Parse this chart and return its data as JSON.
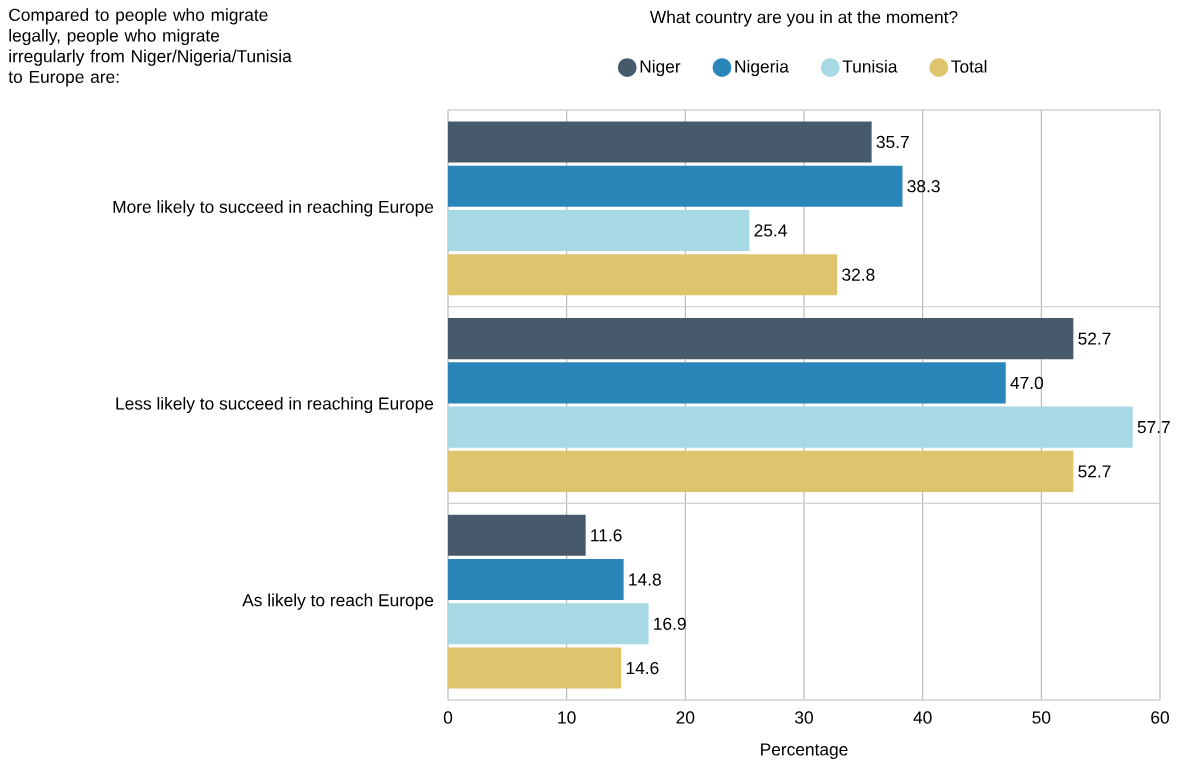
{
  "chart_data": {
    "type": "bar",
    "orientation": "horizontal",
    "ylabel": "Compared to people who migrate legally, people who migrate irregularly from Niger/Nigeria/Tunisia to Europe are:",
    "legend_title": "What country are you in at the moment?",
    "xlabel": "Percentage",
    "categories": [
      "More likely to succeed in reaching Europe",
      "Less likely to succeed in reaching Europe",
      "As likely to reach Europe"
    ],
    "series": [
      {
        "name": "Niger",
        "color": "#475a6b",
        "values": [
          35.7,
          52.7,
          11.6
        ],
        "value_labels": [
          "35.7",
          "52.7",
          "11.6"
        ]
      },
      {
        "name": "Nigeria",
        "color": "#2a86b8",
        "values": [
          38.3,
          47.0,
          14.8
        ],
        "value_labels": [
          "38.3",
          "47.0",
          "14.8"
        ]
      },
      {
        "name": "Tunisia",
        "color": "#a6d9e3",
        "values": [
          25.4,
          57.7,
          16.9
        ],
        "value_labels": [
          "25.4",
          "57.7",
          "16.9"
        ]
      },
      {
        "name": "Total",
        "color": "#dfc46e",
        "values": [
          32.8,
          52.7,
          14.6
        ],
        "value_labels": [
          "32.8",
          "52.7",
          "14.6"
        ]
      }
    ],
    "xlim": [
      0,
      60
    ],
    "xticks": [
      0,
      10,
      20,
      30,
      40,
      50,
      60
    ],
    "grid": "x",
    "legend": "top"
  }
}
